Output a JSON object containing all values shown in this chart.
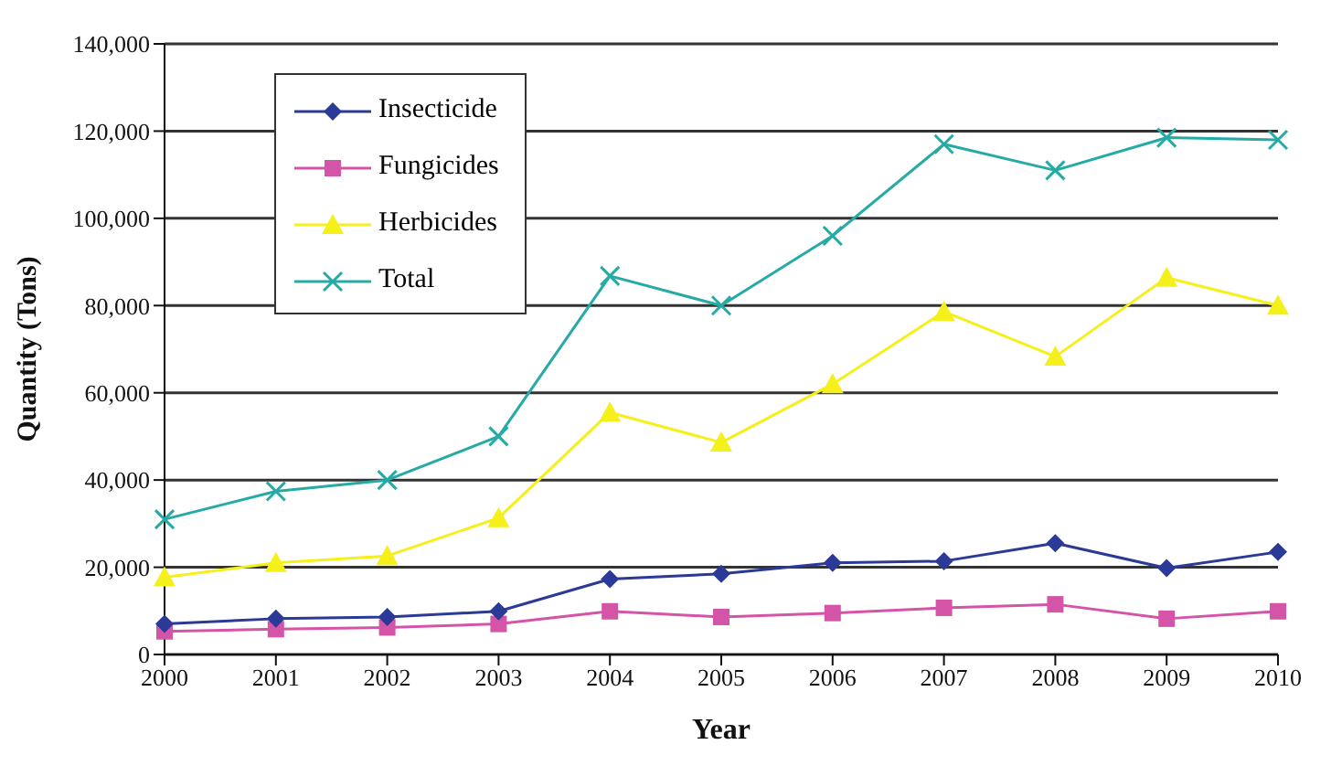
{
  "chart_data": {
    "type": "line",
    "xlabel": "Year",
    "ylabel": "Quantity (Tons)",
    "categories": [
      "2000",
      "2001",
      "2002",
      "2003",
      "2004",
      "2005",
      "2006",
      "2007",
      "2008",
      "2009",
      "2010"
    ],
    "series": [
      {
        "name": "Insecticide",
        "color": "#2b3a97",
        "marker": "diamond",
        "values": [
          7000,
          8200,
          8600,
          9900,
          17300,
          18500,
          21000,
          21400,
          25500,
          19800,
          23500
        ]
      },
      {
        "name": "Fungicides",
        "color": "#d454a8",
        "marker": "square",
        "values": [
          5300,
          5800,
          6200,
          7000,
          9900,
          8600,
          9500,
          10700,
          11500,
          8200,
          9900
        ]
      },
      {
        "name": "Herbicides",
        "color": "#f5ef1a",
        "marker": "triangle",
        "values": [
          17700,
          21000,
          22600,
          31300,
          55500,
          48600,
          62000,
          78600,
          68300,
          86400,
          80000
        ]
      },
      {
        "name": "Total",
        "color": "#26aaa6",
        "marker": "cross",
        "values": [
          31000,
          37400,
          40000,
          50000,
          86800,
          80000,
          96000,
          117000,
          111000,
          118500,
          118000
        ]
      }
    ],
    "ylim": [
      0,
      140000
    ],
    "yticks": [
      {
        "value": 0,
        "label": "0"
      },
      {
        "value": 20000,
        "label": "20,000"
      },
      {
        "value": 40000,
        "label": "40,000"
      },
      {
        "value": 60000,
        "label": "60,000"
      },
      {
        "value": 80000,
        "label": "80,000"
      },
      {
        "value": 100000,
        "label": "100,000"
      },
      {
        "value": 120000,
        "label": "120,000"
      },
      {
        "value": 140000,
        "label": "140,000"
      }
    ],
    "grid": "y",
    "legend": "top left",
    "line_style": "solid"
  }
}
